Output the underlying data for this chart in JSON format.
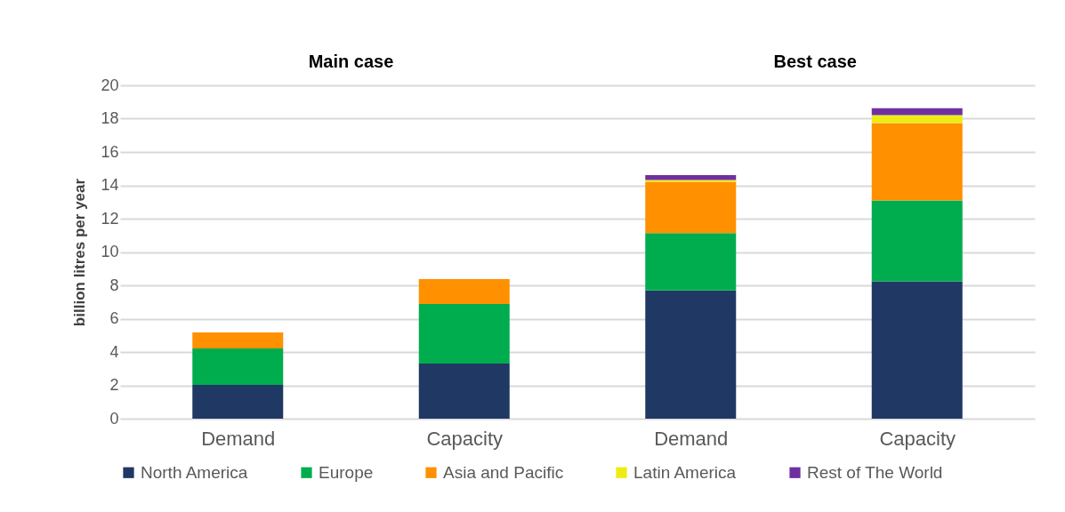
{
  "chart_data": {
    "type": "bar",
    "stacked": true,
    "ylabel": "billion litres per year",
    "categories": [
      "Demand",
      "Capacity",
      "Demand",
      "Capacity"
    ],
    "annotations": [
      "Main case",
      "Best case"
    ],
    "series": [
      {
        "name": "North America",
        "color": "#203864",
        "values": [
          2.03,
          3.31,
          7.7,
          8.24
        ]
      },
      {
        "name": "Europe",
        "color": "#00ad4e",
        "values": [
          2.18,
          3.57,
          3.43,
          4.85
        ]
      },
      {
        "name": "Asia and Pacific",
        "color": "#ff9000",
        "values": [
          0.96,
          1.49,
          3.08,
          4.64
        ]
      },
      {
        "name": "Latin America",
        "color": "#eeec14",
        "values": [
          null,
          null,
          0.11,
          0.48
        ]
      },
      {
        "name": "Rest of The World",
        "color": "#7030a0",
        "values": [
          null,
          null,
          0.29,
          0.42
        ]
      }
    ],
    "ylim": [
      0,
      20
    ],
    "yticks": [
      0,
      2,
      4,
      6,
      8,
      10,
      12,
      14,
      16,
      18,
      20
    ],
    "grid": "y",
    "legend": "bottom"
  }
}
